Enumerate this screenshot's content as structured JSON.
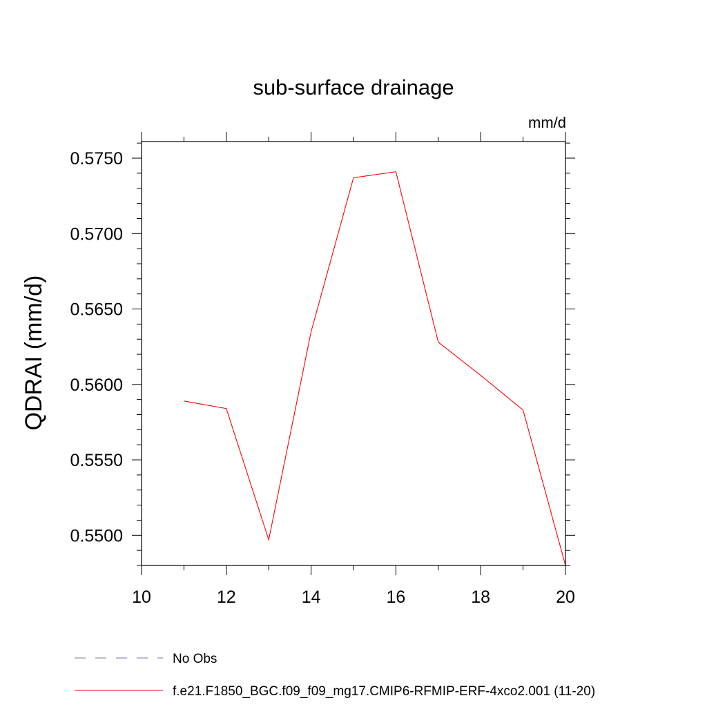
{
  "chart_data": {
    "type": "line",
    "title": "sub-surface drainage",
    "units_label": "mm/d",
    "ylabel": "QDRAI  (mm/d)",
    "xlabel": "",
    "xlim": [
      10,
      20
    ],
    "ylim": [
      0.548,
      0.5761
    ],
    "x_ticks": [
      10,
      12,
      14,
      16,
      18,
      20
    ],
    "x_tick_labels": [
      "10",
      "12",
      "14",
      "16",
      "18",
      "20"
    ],
    "y_ticks": [
      0.55,
      0.555,
      0.56,
      0.565,
      0.57,
      0.575
    ],
    "y_tick_labels": [
      "0.5500",
      "0.5550",
      "0.5600",
      "0.5650",
      "0.5700",
      "0.5750"
    ],
    "grid": false,
    "legend_position": "bottom",
    "series": [
      {
        "name": "f.e21.F1850_BGC.f09_f09_mg17.CMIP6-RFMIP-ERF-4xco2.001 (11-20)",
        "color": "#ff0000",
        "style": "solid",
        "x": [
          11,
          12,
          13,
          14,
          15,
          16,
          17,
          18,
          19,
          20
        ],
        "y": [
          0.5589,
          0.5584,
          0.5497,
          0.5635,
          0.5737,
          0.5741,
          0.5628,
          0.5606,
          0.5583,
          0.548
        ]
      }
    ],
    "legend": [
      {
        "label": "No Obs",
        "color": "#7b6fb0",
        "style": "dashed"
      },
      {
        "label": "f.e21.F1850_BGC.f09_f09_mg17.CMIP6-RFMIP-ERF-4xco2.001 (11-20)",
        "color": "#ff0000",
        "style": "solid"
      }
    ]
  }
}
